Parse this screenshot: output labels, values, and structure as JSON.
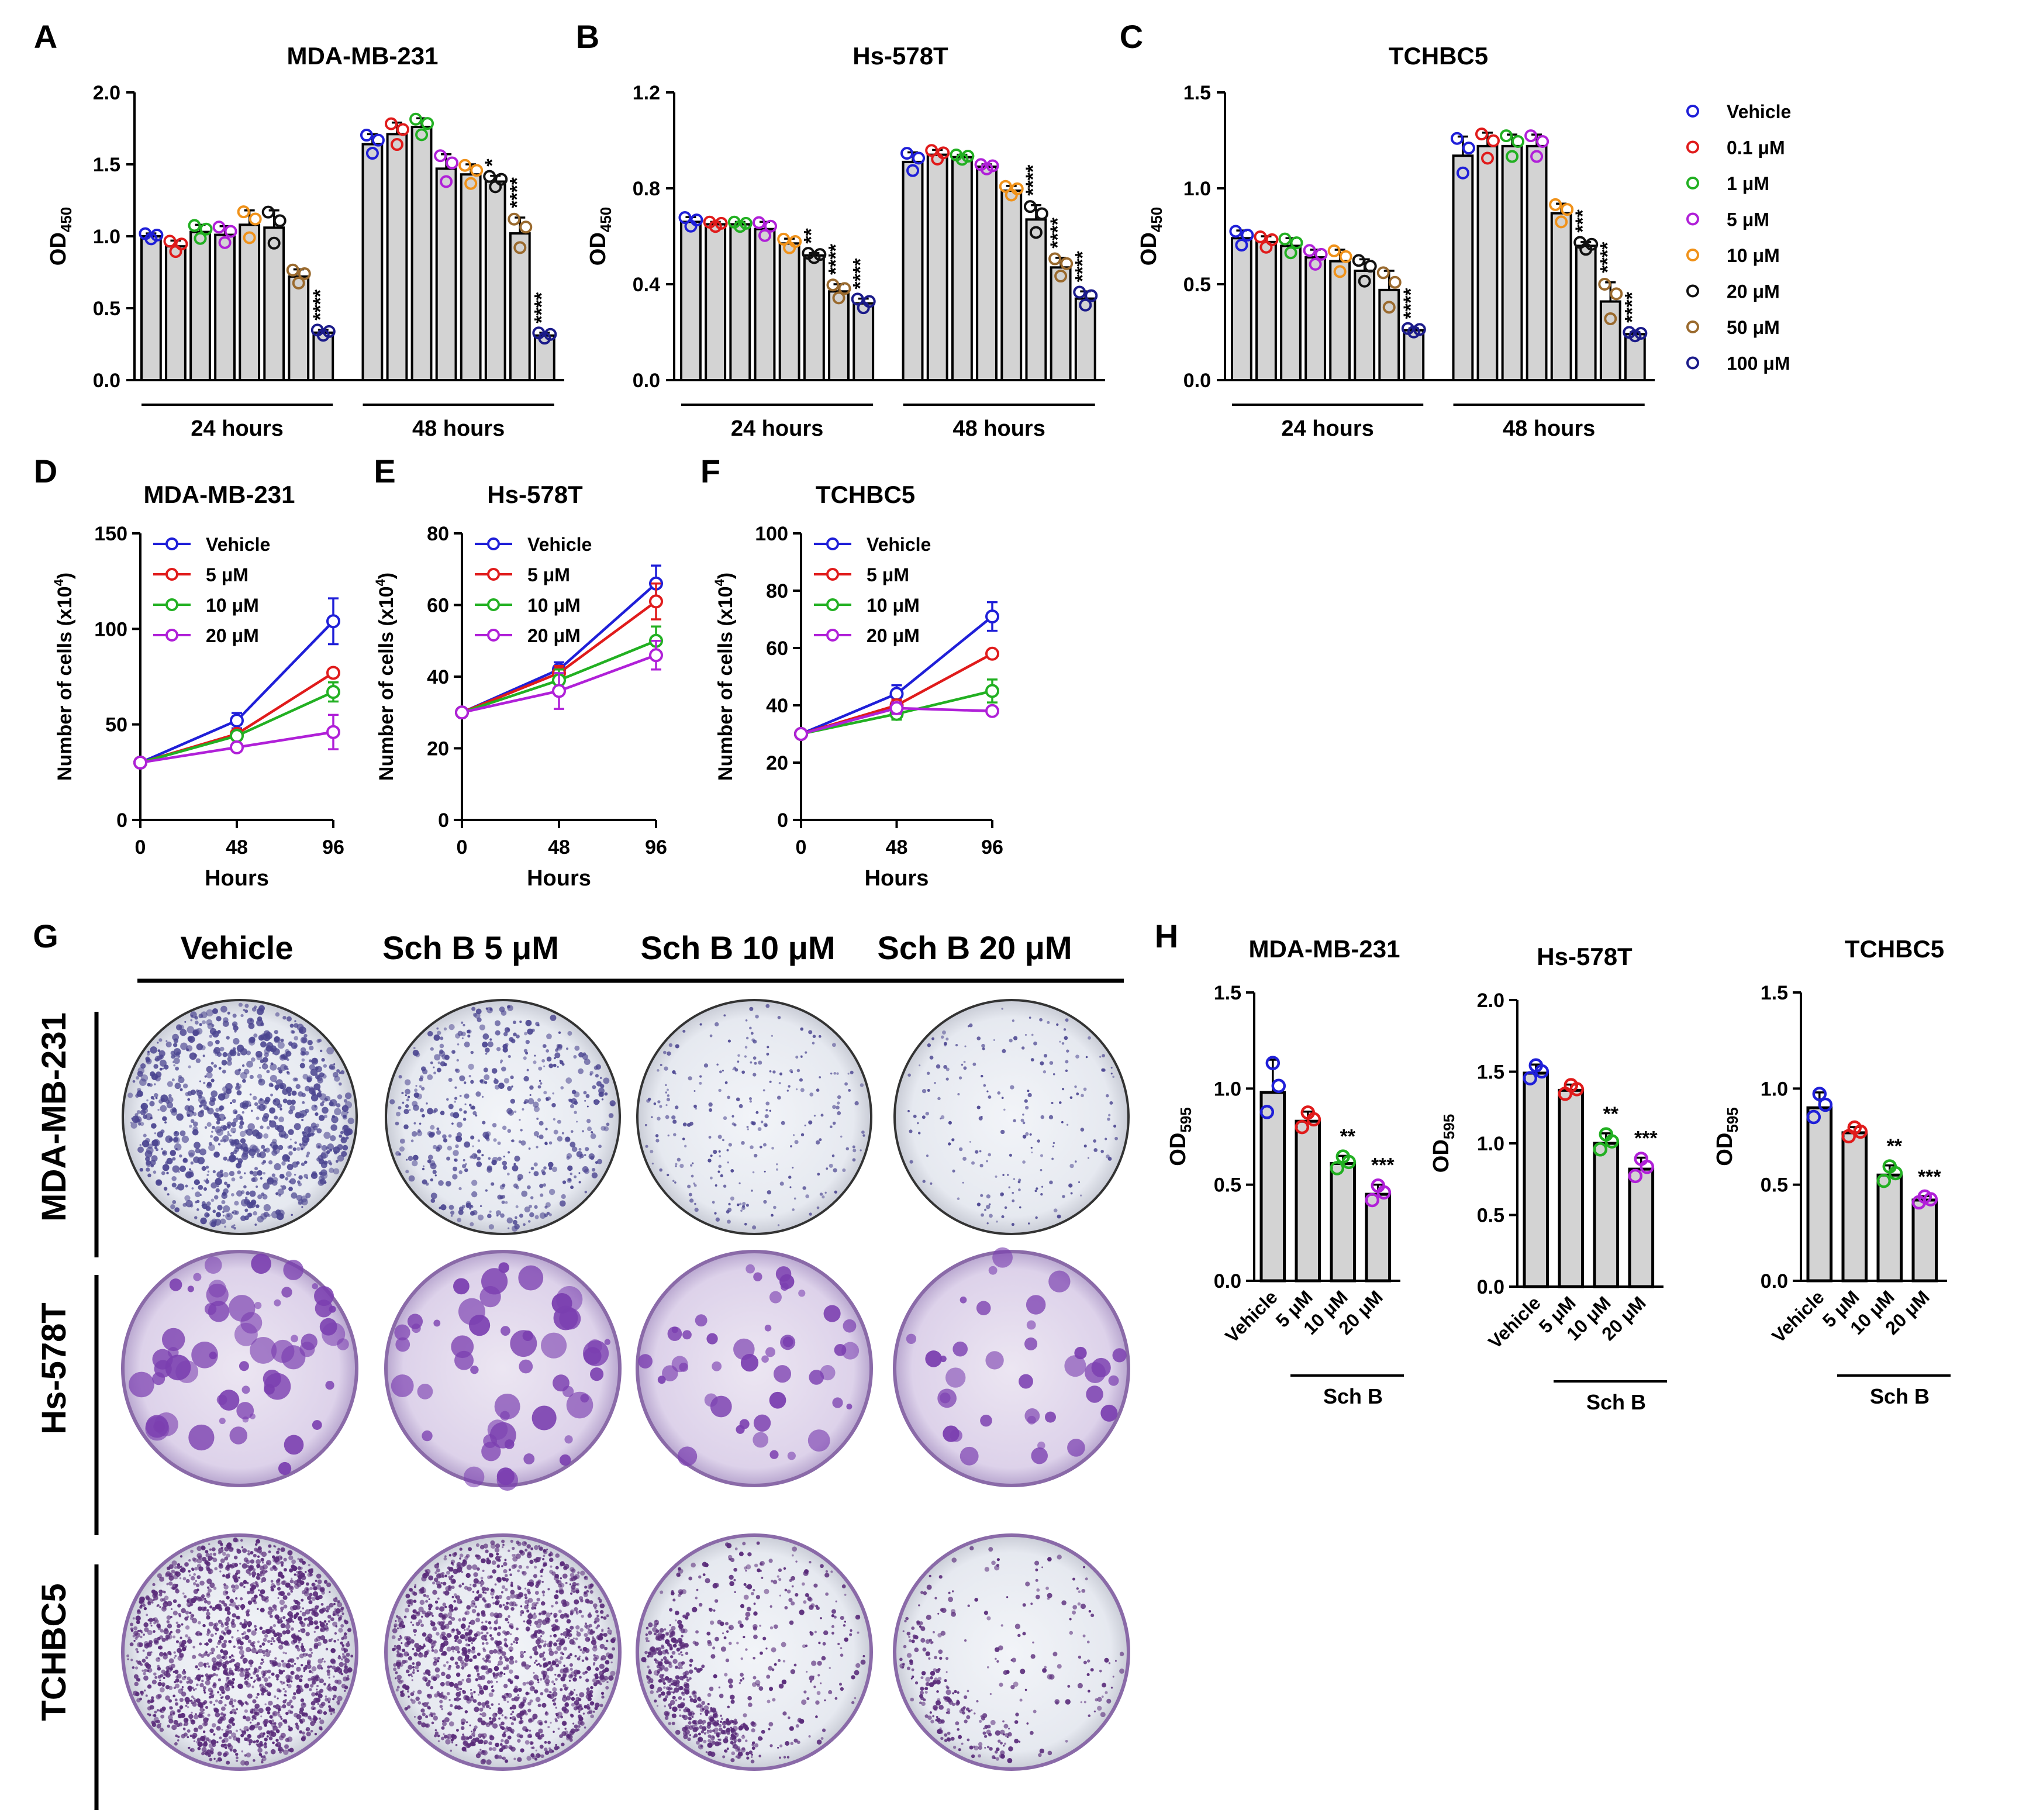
{
  "colors": {
    "dose": [
      "#1f1fd8",
      "#e01b1b",
      "#22b022",
      "#b020d8",
      "#f0921a",
      "#111111",
      "#9a6a2e",
      "#1b1b8a"
    ],
    "growth": [
      "#1f1fd8",
      "#e01b1b",
      "#22b022",
      "#b020d8"
    ],
    "bar_fill": "#d3d3d3"
  },
  "panels": {
    "A": "A",
    "B": "B",
    "C": "C",
    "D": "D",
    "E": "E",
    "F": "F",
    "G": "G",
    "H": "H"
  },
  "legend_dose": [
    "Vehicle",
    "0.1 μM",
    "1 μM",
    "5 μM",
    "10 μM",
    "20 μM",
    "50 μM",
    "100 μM"
  ],
  "legend_growth": [
    "Vehicle",
    "5 μM",
    "10 μM",
    "20 μM"
  ],
  "colony": {
    "columns": [
      "Vehicle",
      "Sch B 5 μM",
      "Sch B 10 μM",
      "Sch B 20 μM"
    ],
    "rows": [
      "MDA-MB-231",
      "Hs-578T",
      "TCHBC5"
    ]
  },
  "chart_data": [
    {
      "id": "A",
      "type": "bar",
      "title": "MDA-MB-231",
      "ylabel": "OD",
      "ylabel_sub": "450",
      "ylim": [
        0,
        2.0
      ],
      "yticks": [
        "0.0",
        "0.5",
        "1.0",
        "1.5",
        "2.0"
      ],
      "groups": [
        "24 hours",
        "48 hours"
      ],
      "series_names": [
        "Vehicle",
        "0.1 μM",
        "1 μM",
        "5 μM",
        "10 μM",
        "20 μM",
        "50 μM",
        "100 μM"
      ],
      "values": [
        [
          1.0,
          0.93,
          1.03,
          1.01,
          1.08,
          1.06,
          0.72,
          0.33
        ],
        [
          1.64,
          1.71,
          1.76,
          1.47,
          1.43,
          1.38,
          1.02,
          0.31
        ]
      ],
      "errors": [
        [
          0.02,
          0.04,
          0.05,
          0.06,
          0.1,
          0.12,
          0.05,
          0.02
        ],
        [
          0.07,
          0.08,
          0.06,
          0.1,
          0.07,
          0.04,
          0.11,
          0.02
        ]
      ],
      "sig": [
        [
          "",
          "",
          "",
          "",
          "",
          "",
          "",
          "****"
        ],
        [
          "",
          "",
          "",
          "",
          "",
          "*",
          "****",
          "****"
        ]
      ]
    },
    {
      "id": "B",
      "type": "bar",
      "title": "Hs-578T",
      "ylabel": "OD",
      "ylabel_sub": "450",
      "ylim": [
        0,
        1.2
      ],
      "yticks": [
        "0.0",
        "0.4",
        "0.8",
        "1.2"
      ],
      "groups": [
        "24 hours",
        "48 hours"
      ],
      "series_names": [
        "Vehicle",
        "0.1 μM",
        "1 μM",
        "5 μM",
        "10 μM",
        "20 μM",
        "50 μM",
        "100 μM"
      ],
      "values": [
        [
          0.66,
          0.65,
          0.65,
          0.63,
          0.57,
          0.52,
          0.37,
          0.32
        ],
        [
          0.91,
          0.94,
          0.93,
          0.89,
          0.79,
          0.67,
          0.47,
          0.34
        ]
      ],
      "errors": [
        [
          0.02,
          0.01,
          0.01,
          0.03,
          0.02,
          0.01,
          0.03,
          0.02
        ],
        [
          0.04,
          0.02,
          0.01,
          0.01,
          0.02,
          0.06,
          0.04,
          0.03
        ]
      ],
      "sig": [
        [
          "",
          "",
          "",
          "",
          "",
          "**",
          "****",
          "****"
        ],
        [
          "",
          "",
          "",
          "",
          "",
          "****",
          "****",
          "****"
        ]
      ]
    },
    {
      "id": "C",
      "type": "bar",
      "title": "TCHBC5",
      "ylabel": "OD",
      "ylabel_sub": "450",
      "ylim": [
        0,
        1.5
      ],
      "yticks": [
        "0.0",
        "0.5",
        "1.0",
        "1.5"
      ],
      "groups": [
        "24 hours",
        "48 hours"
      ],
      "series_names": [
        "Vehicle",
        "0.1 μM",
        "1 μM",
        "5 μM",
        "10 μM",
        "20 μM",
        "50 μM",
        "100 μM"
      ],
      "values": [
        [
          0.74,
          0.72,
          0.7,
          0.64,
          0.62,
          0.57,
          0.47,
          0.26
        ],
        [
          1.17,
          1.22,
          1.22,
          1.22,
          0.87,
          0.7,
          0.41,
          0.24
        ]
      ],
      "errors": [
        [
          0.04,
          0.03,
          0.04,
          0.04,
          0.06,
          0.06,
          0.1,
          0.01
        ],
        [
          0.1,
          0.07,
          0.06,
          0.06,
          0.05,
          0.02,
          0.1,
          0.01
        ]
      ],
      "sig": [
        [
          "",
          "",
          "",
          "",
          "",
          "",
          "",
          "****"
        ],
        [
          "",
          "",
          "",
          "",
          "",
          "***",
          "****",
          "****"
        ]
      ]
    },
    {
      "id": "D",
      "type": "line",
      "title": "MDA-MB-231",
      "xlabel": "Hours",
      "ylabel": "Number of cells (x10",
      "ylabel_sup": "4",
      "ylabel_end": ")",
      "x": [
        0,
        48,
        96
      ],
      "xticks": [
        "0",
        "48",
        "96"
      ],
      "ylim": [
        0,
        150
      ],
      "yticks": [
        "0",
        "50",
        "100",
        "150"
      ],
      "series": [
        {
          "name": "Vehicle",
          "values": [
            30,
            52,
            104
          ],
          "err": [
            0,
            4,
            12
          ]
        },
        {
          "name": "5 μM",
          "values": [
            30,
            45,
            77
          ],
          "err": [
            0,
            2,
            2
          ]
        },
        {
          "name": "10 μM",
          "values": [
            30,
            44,
            67
          ],
          "err": [
            0,
            2,
            5
          ]
        },
        {
          "name": "20 μM",
          "values": [
            30,
            38,
            46
          ],
          "err": [
            0,
            1,
            9
          ]
        }
      ]
    },
    {
      "id": "E",
      "type": "line",
      "title": "Hs-578T",
      "xlabel": "Hours",
      "ylabel": "Number of cells (x10",
      "ylabel_sup": "4",
      "ylabel_end": ")",
      "x": [
        0,
        48,
        96
      ],
      "xticks": [
        "0",
        "48",
        "96"
      ],
      "ylim": [
        0,
        80
      ],
      "yticks": [
        "0",
        "20",
        "40",
        "60",
        "80"
      ],
      "series": [
        {
          "name": "Vehicle",
          "values": [
            30,
            42,
            66
          ],
          "err": [
            0,
            2,
            5
          ]
        },
        {
          "name": "5 μM",
          "values": [
            30,
            41,
            61
          ],
          "err": [
            0,
            2,
            5
          ]
        },
        {
          "name": "10 μM",
          "values": [
            30,
            39,
            50
          ],
          "err": [
            0,
            3,
            4
          ]
        },
        {
          "name": "20 μM",
          "values": [
            30,
            36,
            46
          ],
          "err": [
            0,
            5,
            4
          ]
        }
      ]
    },
    {
      "id": "F",
      "type": "line",
      "title": "TCHBC5",
      "xlabel": "Hours",
      "ylabel": "Number of cells (x10",
      "ylabel_sup": "4",
      "ylabel_end": ")",
      "x": [
        0,
        48,
        96
      ],
      "xticks": [
        "0",
        "48",
        "96"
      ],
      "ylim": [
        0,
        100
      ],
      "yticks": [
        "0",
        "20",
        "40",
        "60",
        "80",
        "100"
      ],
      "series": [
        {
          "name": "Vehicle",
          "values": [
            30,
            44,
            71
          ],
          "err": [
            0,
            3,
            5
          ]
        },
        {
          "name": "5 μM",
          "values": [
            30,
            40,
            58
          ],
          "err": [
            0,
            2,
            1
          ]
        },
        {
          "name": "10 μM",
          "values": [
            30,
            37,
            45
          ],
          "err": [
            0,
            2,
            4
          ]
        },
        {
          "name": "20 μM",
          "values": [
            30,
            39,
            38
          ],
          "err": [
            0,
            2,
            1
          ]
        }
      ]
    },
    {
      "id": "H1",
      "type": "bar",
      "title": "MDA-MB-231",
      "ylabel": "OD",
      "ylabel_sub": "595",
      "ylim": [
        0,
        1.5
      ],
      "yticks": [
        "0.0",
        "0.5",
        "1.0",
        "1.5"
      ],
      "categories": [
        "Vehicle",
        "5 μM",
        "10 μM",
        "20 μM"
      ],
      "group_label": "Sch B",
      "values": [
        0.98,
        0.83,
        0.61,
        0.45
      ],
      "errors": [
        0.17,
        0.05,
        0.04,
        0.05
      ],
      "sig": [
        "",
        "",
        "**",
        "***"
      ]
    },
    {
      "id": "H2",
      "type": "bar",
      "title": "Hs-578T",
      "ylabel": "OD",
      "ylabel_sub": "595",
      "ylim": [
        0,
        2.0
      ],
      "yticks": [
        "0.0",
        "0.5",
        "1.0",
        "1.5",
        "2.0"
      ],
      "categories": [
        "Vehicle",
        "5 μM",
        "10 μM",
        "20 μM"
      ],
      "group_label": "Sch B",
      "values": [
        1.49,
        1.37,
        1.0,
        0.82
      ],
      "errors": [
        0.06,
        0.04,
        0.07,
        0.08
      ],
      "sig": [
        "",
        "",
        "**",
        "***"
      ]
    },
    {
      "id": "H3",
      "type": "bar",
      "title": "TCHBC5",
      "ylabel": "OD",
      "ylabel_sub": "595",
      "ylim": [
        0,
        1.5
      ],
      "yticks": [
        "0.0",
        "0.5",
        "1.0",
        "1.5"
      ],
      "categories": [
        "Vehicle",
        "5 μM",
        "10 μM",
        "20 μM"
      ],
      "group_label": "Sch B",
      "values": [
        0.9,
        0.77,
        0.55,
        0.42
      ],
      "errors": [
        0.08,
        0.03,
        0.05,
        0.02
      ],
      "sig": [
        "",
        "",
        "**",
        "***"
      ]
    }
  ]
}
